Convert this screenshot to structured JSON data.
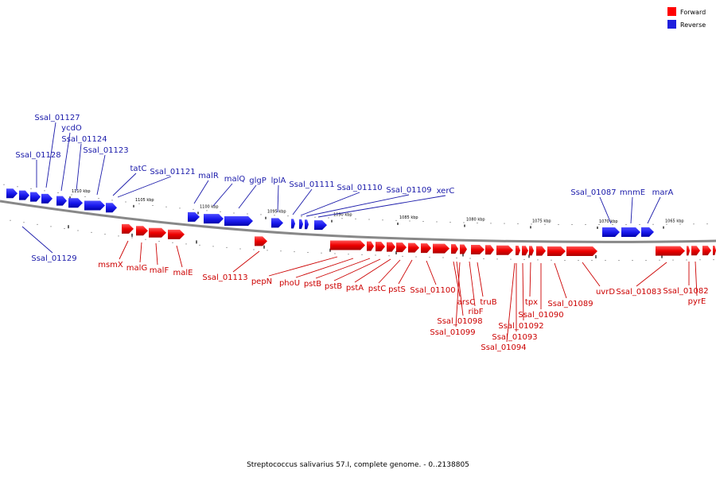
{
  "colors": {
    "forward": "#ff0000",
    "reverse": "#1f1fdd",
    "backbone": "#888888"
  },
  "legend": [
    {
      "label": "Forward",
      "color": "#ff0000"
    },
    {
      "label": "Reverse",
      "color": "#1f1fdd"
    }
  ],
  "caption": "Streptococcus salivarius 57.I, complete genome. - 0..2138805",
  "scale_ticks": [
    "1110 kbp",
    "1105 kbp",
    "1100 kbp",
    "1095 kbp",
    "1090 kbp",
    "1085 kbp",
    "1080 kbp",
    "1075 kbp",
    "1070 kbp",
    "1065 kbp"
  ],
  "genes": [
    {
      "label": "Ssal_01128",
      "strand": "reverse"
    },
    {
      "label": "Ssal_01127",
      "strand": "reverse"
    },
    {
      "label": "ycdO",
      "strand": "reverse"
    },
    {
      "label": "Ssal_01124",
      "strand": "reverse"
    },
    {
      "label": "Ssal_01123",
      "strand": "reverse"
    },
    {
      "label": "tatC",
      "strand": "reverse"
    },
    {
      "label": "Ssal_01121",
      "strand": "reverse"
    },
    {
      "label": "malR",
      "strand": "reverse"
    },
    {
      "label": "malQ",
      "strand": "reverse"
    },
    {
      "label": "glgP",
      "strand": "reverse"
    },
    {
      "label": "lplA",
      "strand": "reverse"
    },
    {
      "label": "Ssal_01111",
      "strand": "reverse"
    },
    {
      "label": "Ssal_01110",
      "strand": "reverse"
    },
    {
      "label": "Ssal_01109",
      "strand": "reverse"
    },
    {
      "label": "xerC",
      "strand": "reverse"
    },
    {
      "label": "Ssal_01087",
      "strand": "reverse"
    },
    {
      "label": "mnmE",
      "strand": "reverse"
    },
    {
      "label": "marA",
      "strand": "reverse"
    },
    {
      "label": "Ssal_01129",
      "strand": "reverse"
    },
    {
      "label": "msmX",
      "strand": "forward"
    },
    {
      "label": "malG",
      "strand": "forward"
    },
    {
      "label": "malF",
      "strand": "forward"
    },
    {
      "label": "malE",
      "strand": "forward"
    },
    {
      "label": "Ssal_01113",
      "strand": "forward"
    },
    {
      "label": "pepN",
      "strand": "forward"
    },
    {
      "label": "phoU",
      "strand": "forward"
    },
    {
      "label": "pstB",
      "strand": "forward"
    },
    {
      "label": "pstB",
      "strand": "forward"
    },
    {
      "label": "pstA",
      "strand": "forward"
    },
    {
      "label": "pstC",
      "strand": "forward"
    },
    {
      "label": "pstS",
      "strand": "forward"
    },
    {
      "label": "Ssal_01100",
      "strand": "forward"
    },
    {
      "label": "arsC",
      "strand": "forward"
    },
    {
      "label": "ribF",
      "strand": "forward"
    },
    {
      "label": "truB",
      "strand": "forward"
    },
    {
      "label": "Ssal_01098",
      "strand": "forward"
    },
    {
      "label": "Ssal_01099",
      "strand": "forward"
    },
    {
      "label": "tpx",
      "strand": "forward"
    },
    {
      "label": "Ssal_01090",
      "strand": "forward"
    },
    {
      "label": "Ssal_01092",
      "strand": "forward"
    },
    {
      "label": "Ssal_01093",
      "strand": "forward"
    },
    {
      "label": "Ssal_01094",
      "strand": "forward"
    },
    {
      "label": "Ssal_01089",
      "strand": "forward"
    },
    {
      "label": "uvrD",
      "strand": "forward"
    },
    {
      "label": "Ssal_01083",
      "strand": "forward"
    },
    {
      "label": "Ssal_01082",
      "strand": "forward"
    },
    {
      "label": "pyrE",
      "strand": "forward"
    }
  ]
}
